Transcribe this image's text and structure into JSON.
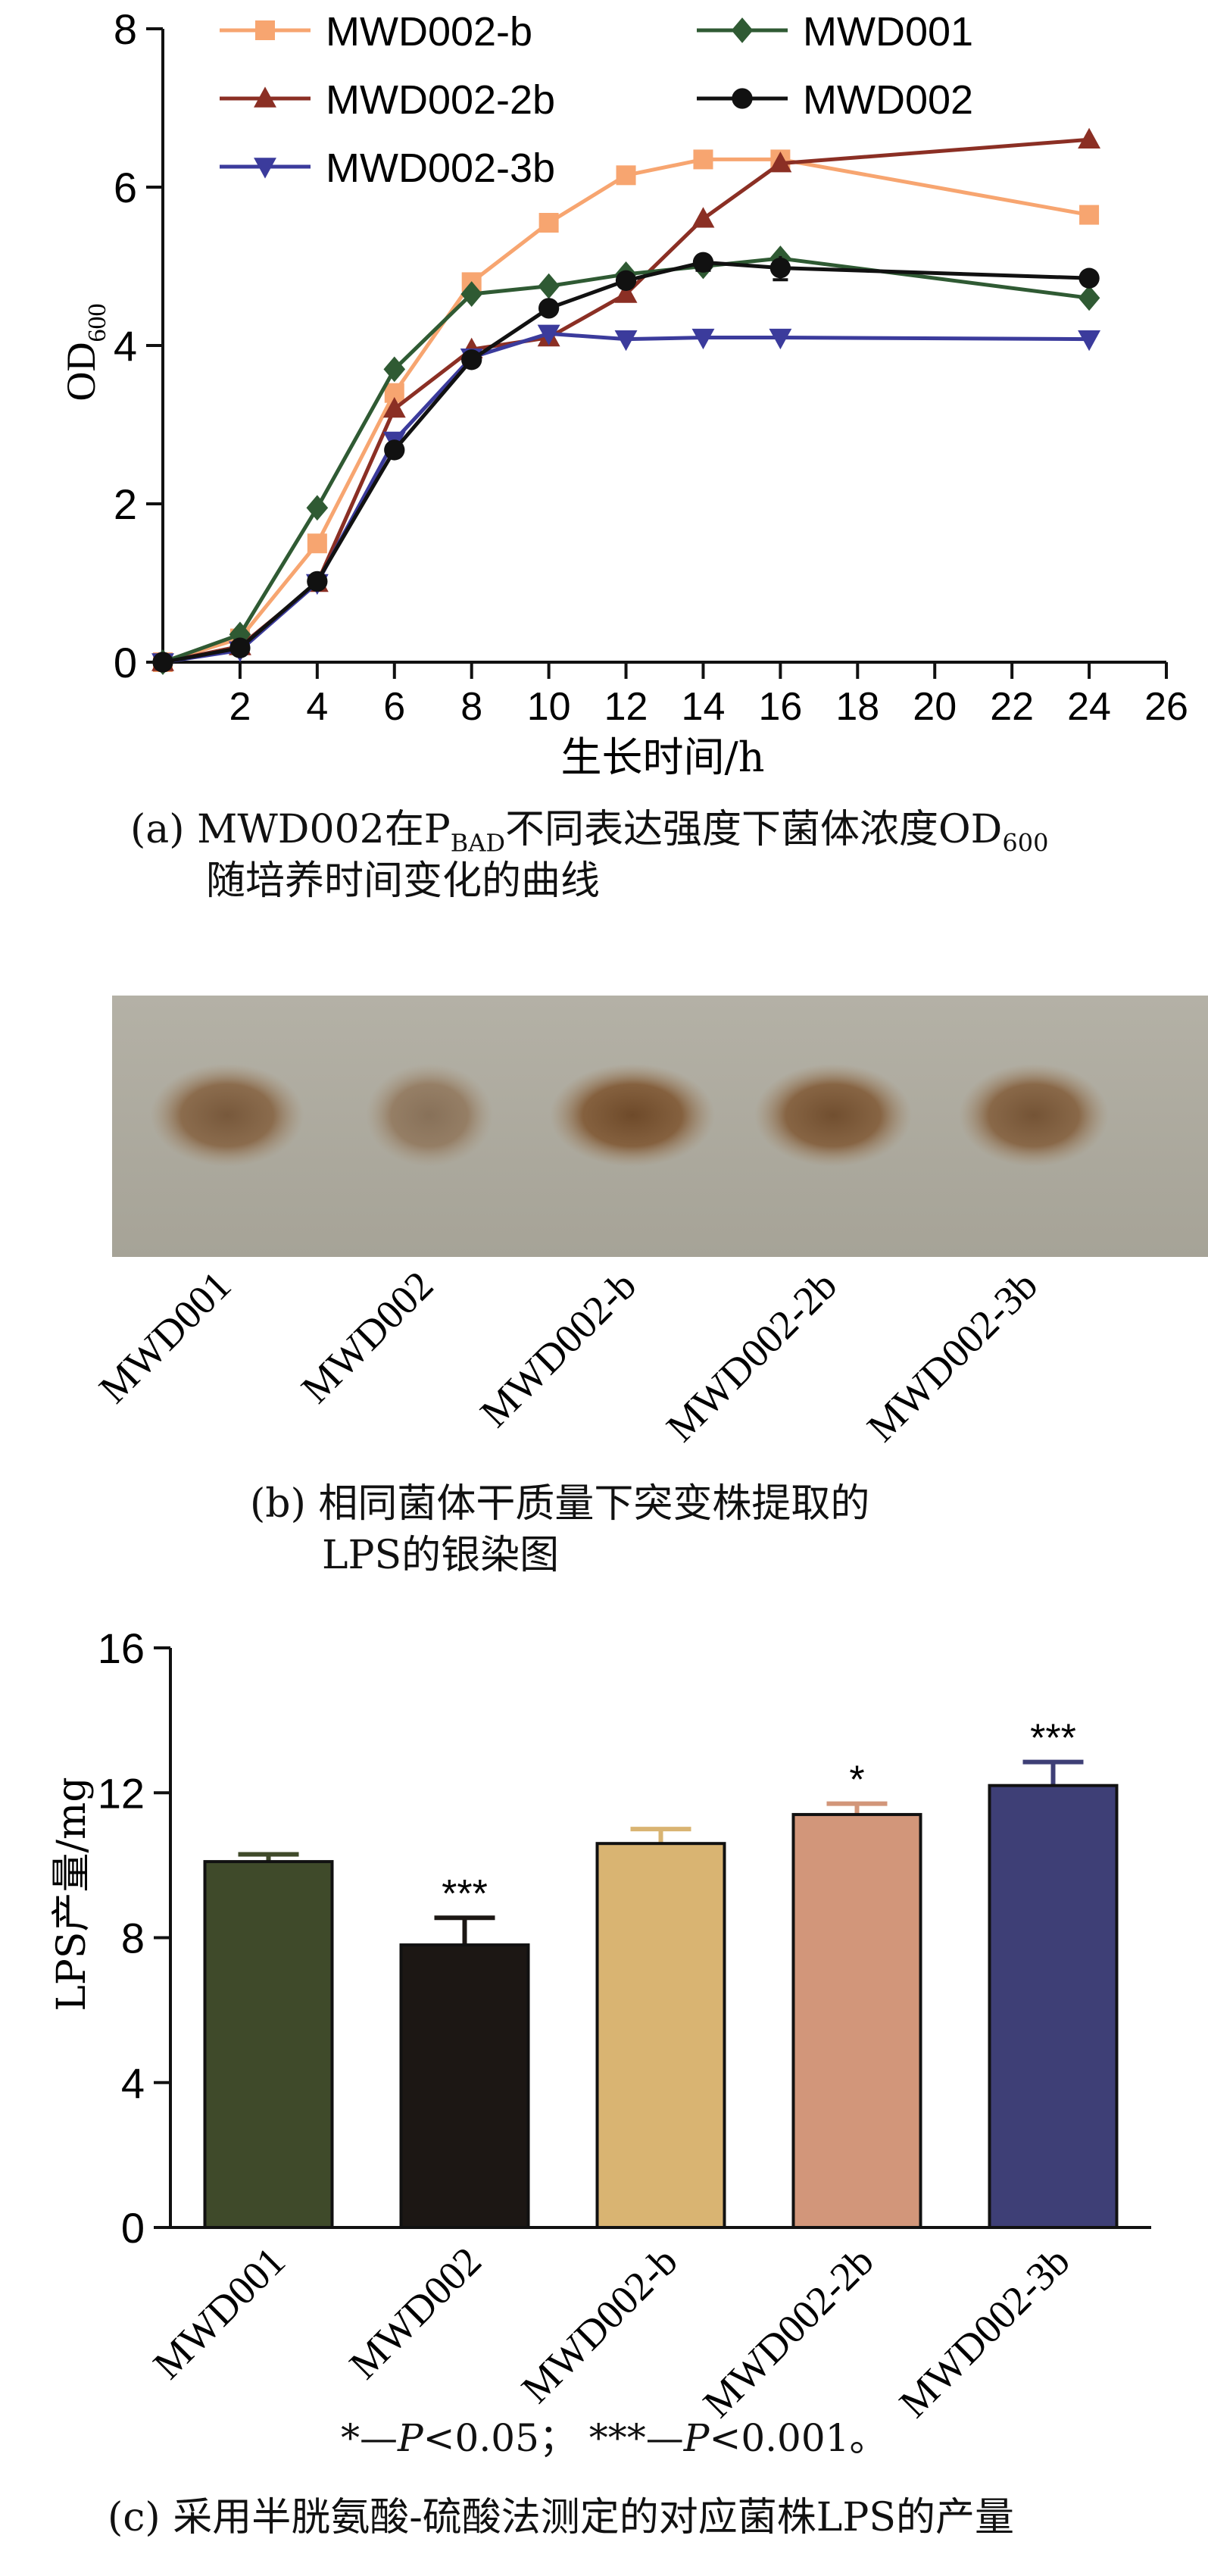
{
  "chart_data": [
    {
      "type": "line",
      "xlabel": "生长时间/h",
      "ylabel": "OD",
      "ylabel_sub": "600",
      "xlim": [
        0,
        26
      ],
      "ylim": [
        0,
        8
      ],
      "x_ticks": [
        2,
        4,
        6,
        8,
        10,
        12,
        14,
        16,
        18,
        20,
        22,
        24,
        26
      ],
      "y_ticks": [
        0,
        2,
        4,
        6,
        8
      ],
      "grid": false,
      "legend_position": "top",
      "series": [
        {
          "name": "MWD002-b",
          "color": "#f7a570",
          "marker": "square",
          "x": [
            0,
            2,
            4,
            6,
            8,
            10,
            12,
            14,
            16,
            24
          ],
          "y": [
            0.0,
            0.3,
            1.5,
            3.4,
            4.8,
            5.55,
            6.15,
            6.35,
            6.35,
            5.65
          ]
        },
        {
          "name": "MWD002-2b",
          "color": "#8b2f24",
          "marker": "triangle-up",
          "x": [
            0,
            2,
            4,
            6,
            8,
            10,
            12,
            14,
            16,
            24
          ],
          "y": [
            0.0,
            0.2,
            1.0,
            3.2,
            3.95,
            4.1,
            4.65,
            5.6,
            6.3,
            6.6
          ]
        },
        {
          "name": "MWD002-3b",
          "color": "#3b3b9c",
          "marker": "triangle-down",
          "x": [
            0,
            2,
            4,
            6,
            8,
            10,
            12,
            14,
            16,
            24
          ],
          "y": [
            0.0,
            0.15,
            1.0,
            2.8,
            3.85,
            4.15,
            4.08,
            4.1,
            4.1,
            4.08
          ]
        },
        {
          "name": "MWD001",
          "color": "#2f5a33",
          "marker": "diamond",
          "x": [
            0,
            2,
            4,
            6,
            8,
            10,
            12,
            14,
            16,
            24
          ],
          "y": [
            0.0,
            0.35,
            1.95,
            3.7,
            4.65,
            4.75,
            4.9,
            5.0,
            5.1,
            4.6
          ]
        },
        {
          "name": "MWD002",
          "color": "#111111",
          "marker": "circle",
          "x": [
            0,
            2,
            4,
            6,
            8,
            10,
            12,
            14,
            16,
            24
          ],
          "y": [
            0.0,
            0.18,
            1.02,
            2.68,
            3.82,
            4.47,
            4.82,
            5.05,
            4.98,
            4.85
          ],
          "error": [
            0,
            0,
            0,
            0,
            0,
            0,
            0,
            0.1,
            0.15,
            0
          ]
        }
      ]
    },
    {
      "type": "gel-image",
      "lanes": [
        "MWD001",
        "MWD002",
        "MWD002-b",
        "MWD002-2b",
        "MWD002-3b"
      ],
      "band_intensity": [
        0.85,
        0.6,
        1.0,
        0.95,
        0.9
      ],
      "colors": {
        "background": "#aeaba0",
        "band": "#7a5a3c"
      }
    },
    {
      "type": "bar",
      "ylabel": "LPS产量/mg",
      "ylim": [
        0,
        16
      ],
      "y_ticks": [
        0,
        4,
        8,
        12,
        16
      ],
      "categories": [
        "MWD001",
        "MWD002",
        "MWD002-b",
        "MWD002-2b",
        "MWD002-3b"
      ],
      "values": [
        10.1,
        7.8,
        10.6,
        11.4,
        12.2
      ],
      "error": [
        0.2,
        0.75,
        0.4,
        0.3,
        0.65
      ],
      "significance": [
        "",
        "***",
        "",
        "*",
        "***"
      ],
      "colors": [
        "#3f4a2a",
        "#1c1714",
        "#d9b472",
        "#d2967a",
        "#3e3f76"
      ],
      "grid": false
    }
  ],
  "captions": {
    "a_prefix": "(a) MWD002在P",
    "a_sub1": "BAD",
    "a_mid": "不同表达强度下菌体浓度OD",
    "a_sub2": "600",
    "a_line2": "随培养时间变化的曲线",
    "b_line1": "(b) 相同菌体干质量下突变株提取的",
    "b_line2": "LPS的银染图",
    "note_p1": "*—",
    "note_p2": "P",
    "note_p3": "<0.05；  ***—",
    "note_p4": "P",
    "note_p5": "<0.001。",
    "c_line": "(c) 采用半胱氨酸-硫酸法测定的对应菌株LPS的产量"
  }
}
